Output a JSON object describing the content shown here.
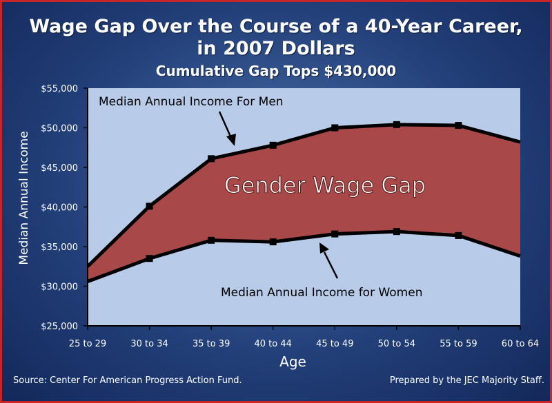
{
  "header": {
    "title_line1": "Wage Gap Over the Course of a 40-Year Career,",
    "title_line2": "in 2007 Dollars",
    "subtitle": "Cumulative Gap Tops $430,000"
  },
  "footer": {
    "source": "Source: Center For American Progress Action Fund.",
    "credit": "Prepared by the JEC Majority Staff."
  },
  "colors": {
    "plot_background": "#b8cbe8",
    "gap_fill": "#a84848",
    "line": "#000000",
    "text_light": "#ffffff"
  },
  "chart_data": {
    "type": "area",
    "title": "Wage Gap Over the Course of a 40-Year Career, in 2007 Dollars",
    "subtitle": "Cumulative Gap Tops $430,000",
    "xlabel": "Age",
    "ylabel": "Median Annual Income",
    "categories": [
      "25 to 29",
      "30 to 34",
      "35 to 39",
      "40 to 44",
      "45 to 49",
      "50 to 54",
      "55 to 59",
      "60 to 64"
    ],
    "ylim": [
      25000,
      55000
    ],
    "yticks": [
      25000,
      30000,
      35000,
      40000,
      45000,
      50000,
      55000
    ],
    "ytick_labels": [
      "$25,000",
      "$30,000",
      "$35,000",
      "$40,000",
      "$45,000",
      "$50,000",
      "$55,000"
    ],
    "grid": false,
    "series": [
      {
        "name": "Median Annual Income For Men",
        "values": [
          32500,
          40100,
          46100,
          47800,
          50000,
          50400,
          50300,
          48200
        ]
      },
      {
        "name": "Median Annual Income for Women",
        "values": [
          30600,
          33500,
          35800,
          35600,
          36600,
          36900,
          36400,
          33800
        ]
      }
    ],
    "annotations": {
      "men_label": "Median Annual Income For Men",
      "women_label": "Median Annual Income for Women",
      "gap_label": "Gender Wage Gap"
    }
  }
}
